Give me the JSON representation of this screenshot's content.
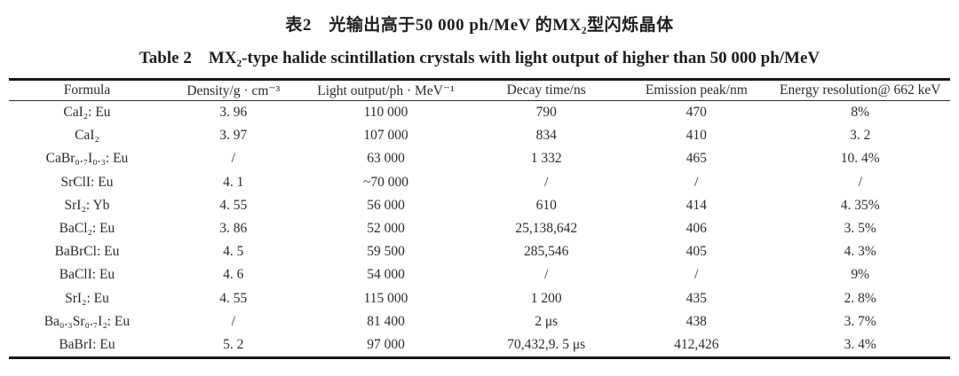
{
  "page": {
    "background": "#ffffff",
    "ink_color": "#2c2c2c",
    "rule_color": "#161616"
  },
  "titles": {
    "chinese": "表2　光输出高于50 000 ph/MeV 的MX₂型闪烁晶体",
    "english": "Table 2　MX₂-type halide scintillation crystals with light output of higher than 50 000 ph/MeV"
  },
  "table": {
    "headers": [
      "Formula",
      "Density/g · cm⁻³",
      "Light output/ph · MeV⁻¹",
      "Decay time/ns",
      "Emission peak/nm",
      "Energy resolution@ 662 keV"
    ],
    "rows": [
      {
        "cells": [
          "CaI₂: Eu",
          "3. 96",
          "110 000",
          "790",
          "470",
          "8%"
        ]
      },
      {
        "cells": [
          "CaI₂",
          "3. 97",
          "107 000",
          "834",
          "410",
          "3. 2"
        ]
      },
      {
        "cells": [
          "CaBr₀.₇I₀.₃: Eu",
          "/",
          "63 000",
          "1 332",
          "465",
          "10. 4%"
        ]
      },
      {
        "cells": [
          "SrClI: Eu",
          "4. 1",
          "~70 000",
          "/",
          "/",
          "/"
        ]
      },
      {
        "cells": [
          "SrI₂: Yb",
          "4. 55",
          "56 000",
          "610",
          "414",
          "4. 35%"
        ]
      },
      {
        "cells": [
          "BaCl₂: Eu",
          "3. 86",
          "52 000",
          "25,138,642",
          "406",
          "3. 5%"
        ]
      },
      {
        "cells": [
          "BaBrCl: Eu",
          "4. 5",
          "59 500",
          "285,546",
          "405",
          "4. 3%"
        ]
      },
      {
        "cells": [
          "BaClI: Eu",
          "4. 6",
          "54 000",
          "/",
          "/",
          "9%"
        ]
      },
      {
        "cells": [
          "SrI₂: Eu",
          "4. 55",
          "115 000",
          "1 200",
          "435",
          "2. 8%"
        ]
      },
      {
        "cells": [
          "Ba₀.₃Sr₀.₇I₂: Eu",
          "/",
          "81 400",
          "2 μs",
          "438",
          "3. 7%"
        ]
      },
      {
        "cells": [
          "BaBrI: Eu",
          "5. 2",
          "97 000",
          "70,432,9. 5 μs",
          "412,426",
          "3. 4%"
        ]
      }
    ]
  }
}
